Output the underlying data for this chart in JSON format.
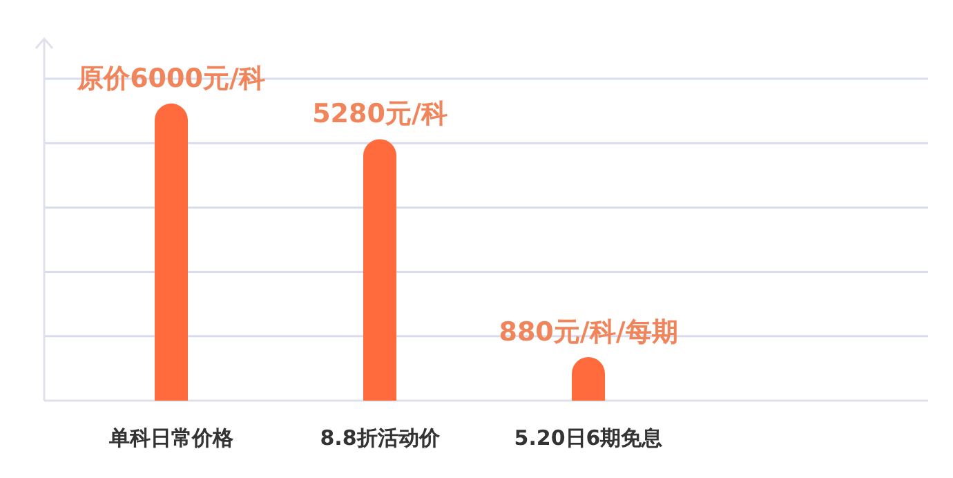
{
  "chart_data": {
    "type": "bar",
    "categories": [
      "单科日常价格",
      "8.8折活动价",
      "5.20日6期免息"
    ],
    "values": [
      6000,
      5280,
      880
    ],
    "value_labels": [
      "原价6000元/科",
      "5280元/科",
      "880元/科/每期"
    ],
    "color": "#ff6b3d",
    "ylim": [
      0,
      6500
    ],
    "yticks": [
      {
        "value": 0,
        "label": null
      },
      {
        "value": 1300,
        "label": null
      },
      {
        "value": 2600,
        "label": null
      },
      {
        "value": 3900,
        "label": null
      },
      {
        "value": 5200,
        "label": null
      },
      {
        "value": 6500,
        "label": null
      }
    ],
    "grid": "y"
  }
}
